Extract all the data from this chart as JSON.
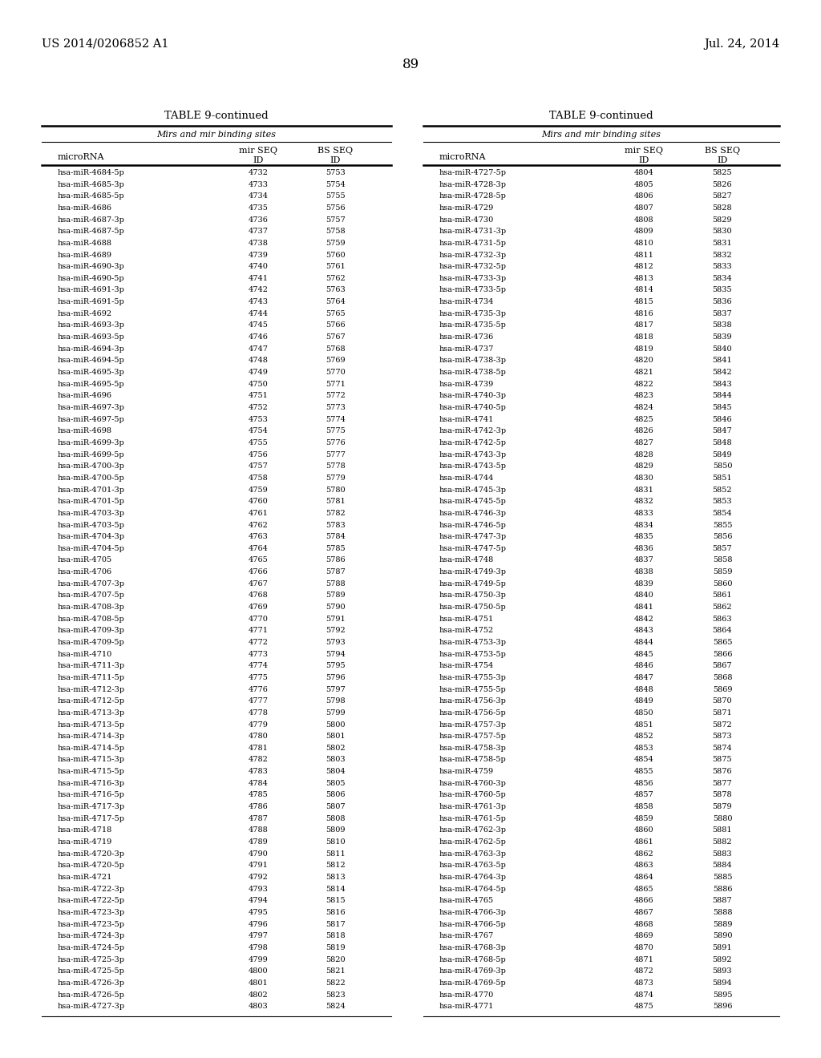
{
  "header_left": "US 2014/0206852 A1",
  "header_right": "Jul. 24, 2014",
  "page_number": "89",
  "table_title": "TABLE 9-continued",
  "table_subtitle": "Mirs and mir binding sites",
  "left_data": [
    [
      "hsa-miR-4684-5p",
      "4732",
      "5753"
    ],
    [
      "hsa-miR-4685-3p",
      "4733",
      "5754"
    ],
    [
      "hsa-miR-4685-5p",
      "4734",
      "5755"
    ],
    [
      "hsa-miR-4686",
      "4735",
      "5756"
    ],
    [
      "hsa-miR-4687-3p",
      "4736",
      "5757"
    ],
    [
      "hsa-miR-4687-5p",
      "4737",
      "5758"
    ],
    [
      "hsa-miR-4688",
      "4738",
      "5759"
    ],
    [
      "hsa-miR-4689",
      "4739",
      "5760"
    ],
    [
      "hsa-miR-4690-3p",
      "4740",
      "5761"
    ],
    [
      "hsa-miR-4690-5p",
      "4741",
      "5762"
    ],
    [
      "hsa-miR-4691-3p",
      "4742",
      "5763"
    ],
    [
      "hsa-miR-4691-5p",
      "4743",
      "5764"
    ],
    [
      "hsa-miR-4692",
      "4744",
      "5765"
    ],
    [
      "hsa-miR-4693-3p",
      "4745",
      "5766"
    ],
    [
      "hsa-miR-4693-5p",
      "4746",
      "5767"
    ],
    [
      "hsa-miR-4694-3p",
      "4747",
      "5768"
    ],
    [
      "hsa-miR-4694-5p",
      "4748",
      "5769"
    ],
    [
      "hsa-miR-4695-3p",
      "4749",
      "5770"
    ],
    [
      "hsa-miR-4695-5p",
      "4750",
      "5771"
    ],
    [
      "hsa-miR-4696",
      "4751",
      "5772"
    ],
    [
      "hsa-miR-4697-3p",
      "4752",
      "5773"
    ],
    [
      "hsa-miR-4697-5p",
      "4753",
      "5774"
    ],
    [
      "hsa-miR-4698",
      "4754",
      "5775"
    ],
    [
      "hsa-miR-4699-3p",
      "4755",
      "5776"
    ],
    [
      "hsa-miR-4699-5p",
      "4756",
      "5777"
    ],
    [
      "hsa-miR-4700-3p",
      "4757",
      "5778"
    ],
    [
      "hsa-miR-4700-5p",
      "4758",
      "5779"
    ],
    [
      "hsa-miR-4701-3p",
      "4759",
      "5780"
    ],
    [
      "hsa-miR-4701-5p",
      "4760",
      "5781"
    ],
    [
      "hsa-miR-4703-3p",
      "4761",
      "5782"
    ],
    [
      "hsa-miR-4703-5p",
      "4762",
      "5783"
    ],
    [
      "hsa-miR-4704-3p",
      "4763",
      "5784"
    ],
    [
      "hsa-miR-4704-5p",
      "4764",
      "5785"
    ],
    [
      "hsa-miR-4705",
      "4765",
      "5786"
    ],
    [
      "hsa-miR-4706",
      "4766",
      "5787"
    ],
    [
      "hsa-miR-4707-3p",
      "4767",
      "5788"
    ],
    [
      "hsa-miR-4707-5p",
      "4768",
      "5789"
    ],
    [
      "hsa-miR-4708-3p",
      "4769",
      "5790"
    ],
    [
      "hsa-miR-4708-5p",
      "4770",
      "5791"
    ],
    [
      "hsa-miR-4709-3p",
      "4771",
      "5792"
    ],
    [
      "hsa-miR-4709-5p",
      "4772",
      "5793"
    ],
    [
      "hsa-miR-4710",
      "4773",
      "5794"
    ],
    [
      "hsa-miR-4711-3p",
      "4774",
      "5795"
    ],
    [
      "hsa-miR-4711-5p",
      "4775",
      "5796"
    ],
    [
      "hsa-miR-4712-3p",
      "4776",
      "5797"
    ],
    [
      "hsa-miR-4712-5p",
      "4777",
      "5798"
    ],
    [
      "hsa-miR-4713-3p",
      "4778",
      "5799"
    ],
    [
      "hsa-miR-4713-5p",
      "4779",
      "5800"
    ],
    [
      "hsa-miR-4714-3p",
      "4780",
      "5801"
    ],
    [
      "hsa-miR-4714-5p",
      "4781",
      "5802"
    ],
    [
      "hsa-miR-4715-3p",
      "4782",
      "5803"
    ],
    [
      "hsa-miR-4715-5p",
      "4783",
      "5804"
    ],
    [
      "hsa-miR-4716-3p",
      "4784",
      "5805"
    ],
    [
      "hsa-miR-4716-5p",
      "4785",
      "5806"
    ],
    [
      "hsa-miR-4717-3p",
      "4786",
      "5807"
    ],
    [
      "hsa-miR-4717-5p",
      "4787",
      "5808"
    ],
    [
      "hsa-miR-4718",
      "4788",
      "5809"
    ],
    [
      "hsa-miR-4719",
      "4789",
      "5810"
    ],
    [
      "hsa-miR-4720-3p",
      "4790",
      "5811"
    ],
    [
      "hsa-miR-4720-5p",
      "4791",
      "5812"
    ],
    [
      "hsa-miR-4721",
      "4792",
      "5813"
    ],
    [
      "hsa-miR-4722-3p",
      "4793",
      "5814"
    ],
    [
      "hsa-miR-4722-5p",
      "4794",
      "5815"
    ],
    [
      "hsa-miR-4723-3p",
      "4795",
      "5816"
    ],
    [
      "hsa-miR-4723-5p",
      "4796",
      "5817"
    ],
    [
      "hsa-miR-4724-3p",
      "4797",
      "5818"
    ],
    [
      "hsa-miR-4724-5p",
      "4798",
      "5819"
    ],
    [
      "hsa-miR-4725-3p",
      "4799",
      "5820"
    ],
    [
      "hsa-miR-4725-5p",
      "4800",
      "5821"
    ],
    [
      "hsa-miR-4726-3p",
      "4801",
      "5822"
    ],
    [
      "hsa-miR-4726-5p",
      "4802",
      "5823"
    ],
    [
      "hsa-miR-4727-3p",
      "4803",
      "5824"
    ]
  ],
  "right_data": [
    [
      "hsa-miR-4727-5p",
      "4804",
      "5825"
    ],
    [
      "hsa-miR-4728-3p",
      "4805",
      "5826"
    ],
    [
      "hsa-miR-4728-5p",
      "4806",
      "5827"
    ],
    [
      "hsa-miR-4729",
      "4807",
      "5828"
    ],
    [
      "hsa-miR-4730",
      "4808",
      "5829"
    ],
    [
      "hsa-miR-4731-3p",
      "4809",
      "5830"
    ],
    [
      "hsa-miR-4731-5p",
      "4810",
      "5831"
    ],
    [
      "hsa-miR-4732-3p",
      "4811",
      "5832"
    ],
    [
      "hsa-miR-4732-5p",
      "4812",
      "5833"
    ],
    [
      "hsa-miR-4733-3p",
      "4813",
      "5834"
    ],
    [
      "hsa-miR-4733-5p",
      "4814",
      "5835"
    ],
    [
      "hsa-miR-4734",
      "4815",
      "5836"
    ],
    [
      "hsa-miR-4735-3p",
      "4816",
      "5837"
    ],
    [
      "hsa-miR-4735-5p",
      "4817",
      "5838"
    ],
    [
      "hsa-miR-4736",
      "4818",
      "5839"
    ],
    [
      "hsa-miR-4737",
      "4819",
      "5840"
    ],
    [
      "hsa-miR-4738-3p",
      "4820",
      "5841"
    ],
    [
      "hsa-miR-4738-5p",
      "4821",
      "5842"
    ],
    [
      "hsa-miR-4739",
      "4822",
      "5843"
    ],
    [
      "hsa-miR-4740-3p",
      "4823",
      "5844"
    ],
    [
      "hsa-miR-4740-5p",
      "4824",
      "5845"
    ],
    [
      "hsa-miR-4741",
      "4825",
      "5846"
    ],
    [
      "hsa-miR-4742-3p",
      "4826",
      "5847"
    ],
    [
      "hsa-miR-4742-5p",
      "4827",
      "5848"
    ],
    [
      "hsa-miR-4743-3p",
      "4828",
      "5849"
    ],
    [
      "hsa-miR-4743-5p",
      "4829",
      "5850"
    ],
    [
      "hsa-miR-4744",
      "4830",
      "5851"
    ],
    [
      "hsa-miR-4745-3p",
      "4831",
      "5852"
    ],
    [
      "hsa-miR-4745-5p",
      "4832",
      "5853"
    ],
    [
      "hsa-miR-4746-3p",
      "4833",
      "5854"
    ],
    [
      "hsa-miR-4746-5p",
      "4834",
      "5855"
    ],
    [
      "hsa-miR-4747-3p",
      "4835",
      "5856"
    ],
    [
      "hsa-miR-4747-5p",
      "4836",
      "5857"
    ],
    [
      "hsa-miR-4748",
      "4837",
      "5858"
    ],
    [
      "hsa-miR-4749-3p",
      "4838",
      "5859"
    ],
    [
      "hsa-miR-4749-5p",
      "4839",
      "5860"
    ],
    [
      "hsa-miR-4750-3p",
      "4840",
      "5861"
    ],
    [
      "hsa-miR-4750-5p",
      "4841",
      "5862"
    ],
    [
      "hsa-miR-4751",
      "4842",
      "5863"
    ],
    [
      "hsa-miR-4752",
      "4843",
      "5864"
    ],
    [
      "hsa-miR-4753-3p",
      "4844",
      "5865"
    ],
    [
      "hsa-miR-4753-5p",
      "4845",
      "5866"
    ],
    [
      "hsa-miR-4754",
      "4846",
      "5867"
    ],
    [
      "hsa-miR-4755-3p",
      "4847",
      "5868"
    ],
    [
      "hsa-miR-4755-5p",
      "4848",
      "5869"
    ],
    [
      "hsa-miR-4756-3p",
      "4849",
      "5870"
    ],
    [
      "hsa-miR-4756-5p",
      "4850",
      "5871"
    ],
    [
      "hsa-miR-4757-3p",
      "4851",
      "5872"
    ],
    [
      "hsa-miR-4757-5p",
      "4852",
      "5873"
    ],
    [
      "hsa-miR-4758-3p",
      "4853",
      "5874"
    ],
    [
      "hsa-miR-4758-5p",
      "4854",
      "5875"
    ],
    [
      "hsa-miR-4759",
      "4855",
      "5876"
    ],
    [
      "hsa-miR-4760-3p",
      "4856",
      "5877"
    ],
    [
      "hsa-miR-4760-5p",
      "4857",
      "5878"
    ],
    [
      "hsa-miR-4761-3p",
      "4858",
      "5879"
    ],
    [
      "hsa-miR-4761-5p",
      "4859",
      "5880"
    ],
    [
      "hsa-miR-4762-3p",
      "4860",
      "5881"
    ],
    [
      "hsa-miR-4762-5p",
      "4861",
      "5882"
    ],
    [
      "hsa-miR-4763-3p",
      "4862",
      "5883"
    ],
    [
      "hsa-miR-4763-5p",
      "4863",
      "5884"
    ],
    [
      "hsa-miR-4764-3p",
      "4864",
      "5885"
    ],
    [
      "hsa-miR-4764-5p",
      "4865",
      "5886"
    ],
    [
      "hsa-miR-4765",
      "4866",
      "5887"
    ],
    [
      "hsa-miR-4766-3p",
      "4867",
      "5888"
    ],
    [
      "hsa-miR-4766-5p",
      "4868",
      "5889"
    ],
    [
      "hsa-miR-4767",
      "4869",
      "5890"
    ],
    [
      "hsa-miR-4768-3p",
      "4870",
      "5891"
    ],
    [
      "hsa-miR-4768-5p",
      "4871",
      "5892"
    ],
    [
      "hsa-miR-4769-3p",
      "4872",
      "5893"
    ],
    [
      "hsa-miR-4769-5p",
      "4873",
      "5894"
    ],
    [
      "hsa-miR-4770",
      "4874",
      "5895"
    ],
    [
      "hsa-miR-4771",
      "4875",
      "5896"
    ]
  ],
  "bg_color": "#ffffff",
  "text_color": "#000000",
  "font_size": 7.0,
  "header_font_size": 9.5
}
